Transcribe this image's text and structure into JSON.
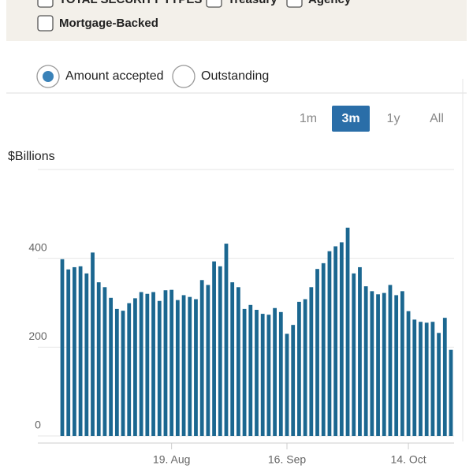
{
  "filters": {
    "checkboxes": [
      "TOTAL SECURITY TYPES",
      "Treasury",
      "Agency",
      "Mortgage-Backed"
    ],
    "radios": [
      "Amount accepted",
      "Outstanding"
    ],
    "selected_radio": 0
  },
  "range_buttons": [
    "1m",
    "3m",
    "1y",
    "All"
  ],
  "active_range": 1,
  "chart_data": {
    "type": "bar",
    "y_label": "$Billions",
    "color": "#1b6790",
    "categories": [
      null,
      null,
      null,
      null,
      null,
      null,
      null,
      null,
      null,
      null,
      null,
      null,
      null,
      null,
      null,
      null,
      null,
      null,
      "19. Aug",
      null,
      null,
      null,
      null,
      null,
      null,
      null,
      null,
      null,
      null,
      null,
      null,
      null,
      null,
      null,
      null,
      null,
      null,
      "16. Sep",
      null,
      null,
      null,
      null,
      null,
      null,
      null,
      null,
      null,
      null,
      null,
      null,
      null,
      null,
      null,
      null,
      null,
      null,
      null,
      "14. Oct",
      null,
      null,
      null,
      null,
      null,
      null,
      null
    ],
    "values": [
      398,
      375,
      380,
      382,
      366,
      413,
      346,
      335,
      311,
      286,
      282,
      299,
      310,
      324,
      320,
      324,
      304,
      328,
      329,
      306,
      317,
      313,
      308,
      351,
      340,
      393,
      382,
      433,
      346,
      335,
      286,
      295,
      284,
      275,
      273,
      288,
      279,
      230,
      250,
      302,
      308,
      335,
      376,
      389,
      416,
      427,
      436,
      469,
      366,
      380,
      337,
      326,
      319,
      322,
      340,
      317,
      326,
      281,
      262,
      257,
      255,
      257,
      232,
      266,
      194
    ],
    "ylim": [
      0,
      600
    ],
    "yticks": [
      0,
      200,
      400
    ],
    "grid": true
  }
}
